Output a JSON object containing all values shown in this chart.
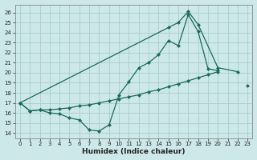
{
  "background_color": "#cce8e8",
  "grid_color": "#aacccc",
  "line_color": "#1a6b5a",
  "xlabel": "Humidex (Indice chaleur)",
  "xlim": [
    -0.5,
    23.5
  ],
  "ylim": [
    13.5,
    26.8
  ],
  "yticks": [
    14,
    15,
    16,
    17,
    18,
    19,
    20,
    21,
    22,
    23,
    24,
    25,
    26
  ],
  "xticks": [
    0,
    1,
    2,
    3,
    4,
    5,
    6,
    7,
    8,
    9,
    10,
    11,
    12,
    13,
    14,
    15,
    16,
    17,
    18,
    19,
    20,
    21,
    22,
    23
  ],
  "line1_x": [
    0,
    1,
    2,
    3,
    4,
    5,
    6,
    7,
    8,
    9,
    10,
    11,
    12,
    13,
    14,
    15,
    16,
    17,
    18,
    19,
    20
  ],
  "line1_y": [
    17.0,
    16.2,
    16.3,
    16.0,
    15.9,
    15.5,
    15.3,
    14.3,
    14.2,
    14.8,
    17.8,
    19.1,
    20.5,
    21.0,
    21.8,
    23.2,
    22.7,
    25.8,
    24.1,
    20.4,
    20.2
  ],
  "line2_x": [
    0,
    1,
    2,
    3,
    4,
    5,
    6,
    7,
    8,
    9,
    10,
    11,
    12,
    13,
    14,
    15,
    16,
    17,
    18,
    19,
    20,
    23
  ],
  "line2_y": [
    17.0,
    16.2,
    16.3,
    16.3,
    16.4,
    16.5,
    16.7,
    16.8,
    17.0,
    17.2,
    17.4,
    17.6,
    17.8,
    18.1,
    18.3,
    18.6,
    18.9,
    19.2,
    19.5,
    19.8,
    20.1,
    18.7
  ],
  "line3_x": [
    0,
    15,
    16,
    17,
    18,
    20,
    22
  ],
  "line3_y": [
    17.0,
    24.5,
    25.0,
    26.1,
    24.8,
    20.5,
    20.1
  ]
}
